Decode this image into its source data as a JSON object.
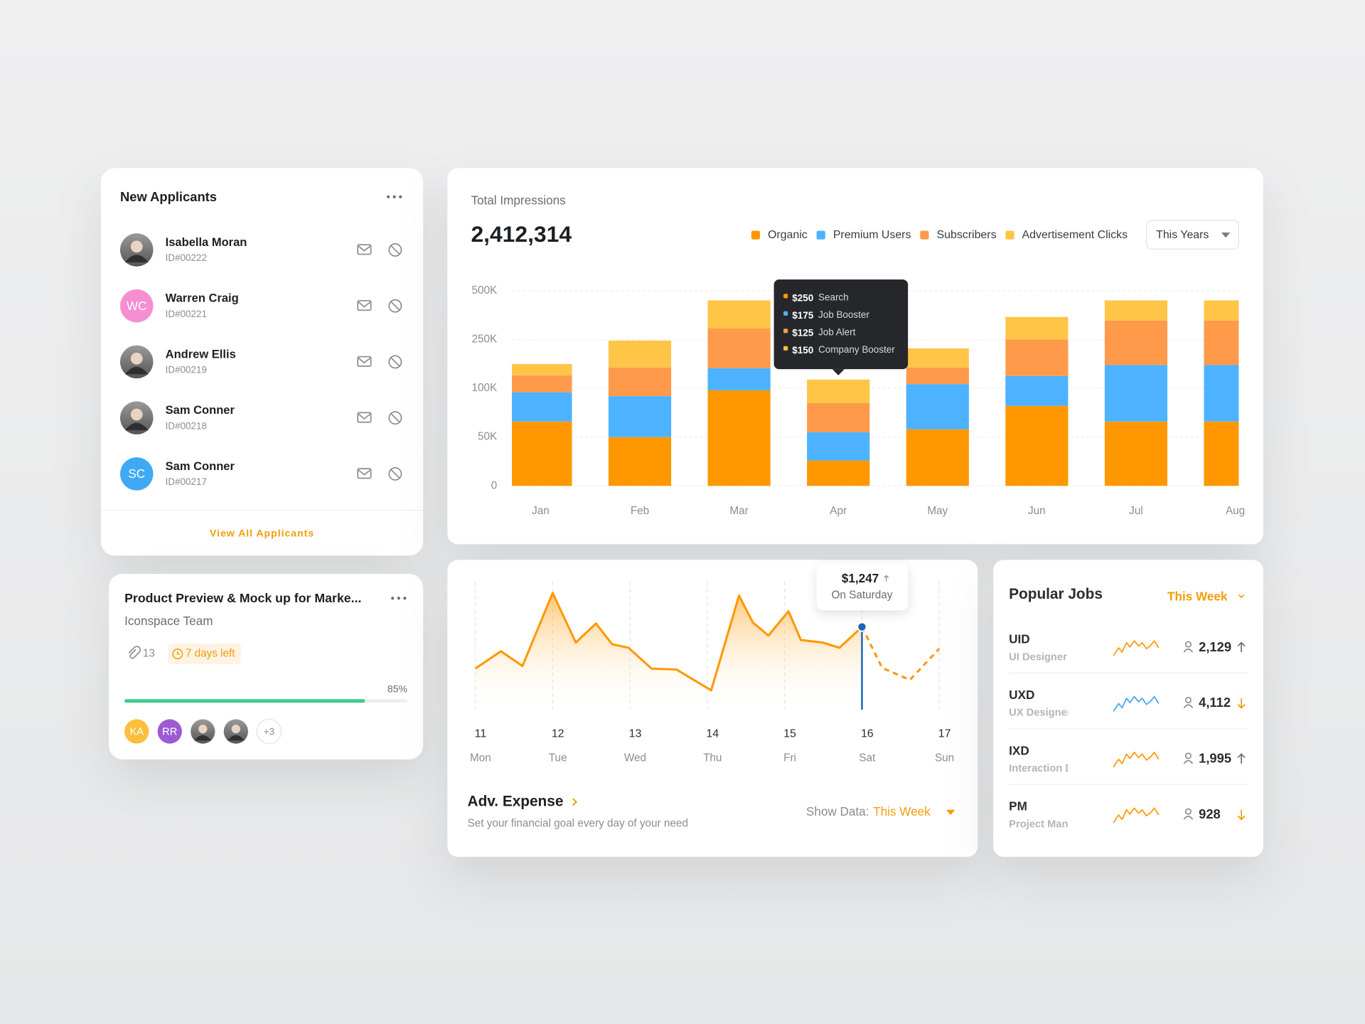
{
  "applicants": {
    "title": "New Applicants",
    "items": [
      {
        "name": "Isabella Moran",
        "id": "ID#00222"
      },
      {
        "name": "Warren Craig",
        "id": "ID#00221",
        "initials": "WC",
        "color": "#f58fd2"
      },
      {
        "name": "Andrew Ellis",
        "id": "ID#00219"
      },
      {
        "name": "Sam Conner",
        "id": "ID#00218"
      },
      {
        "name": "Sam Conner",
        "id": "ID#00217",
        "initials": "SC",
        "color": "#3fa9f5"
      }
    ],
    "link": "View All Applicants"
  },
  "project": {
    "title": "Product Preview & Mock up for Marke...",
    "team": "Iconspace Team",
    "attachments": 13,
    "deadline": "7 days left",
    "progress": {
      "value": 85,
      "label": "85%"
    },
    "members": [
      {
        "initials": "KA",
        "color": "#fbbf3c"
      },
      {
        "initials": "RR",
        "color": "#9b5bd4"
      }
    ],
    "more": "+3"
  },
  "chart_data": [
    {
      "type": "bar",
      "stacked": true,
      "title": "Total Impressions",
      "total": "2,412,314",
      "period": "This Years",
      "categories": [
        "Jan",
        "Feb",
        "Mar",
        "Apr",
        "May",
        "Jun",
        "Jul",
        "Aug"
      ],
      "series": [
        {
          "name": "Organic",
          "color": "#ff9800",
          "values": [
            66000,
            50000,
            98000,
            26000,
            58000,
            82000,
            66000,
            66000
          ]
        },
        {
          "name": "Premium Users",
          "color": "#4db2ff",
          "values": [
            30000,
            42000,
            64000,
            29000,
            55000,
            56000,
            106000,
            106000
          ]
        },
        {
          "name": "Subscribers",
          "color": "#ff9a4a",
          "values": [
            44000,
            72000,
            146000,
            30000,
            51000,
            112000,
            176000,
            176000
          ]
        },
        {
          "name": "Advertisement Clicks",
          "color": "#ffc547",
          "values": [
            35000,
            83000,
            143000,
            42000,
            59000,
            116000,
            103000,
            103000
          ]
        }
      ],
      "ylim": [
        0,
        500000
      ],
      "yticks": [
        0,
        {
          "value": 50000,
          "label": "50K"
        },
        {
          "value": 100000,
          "label": "100K"
        },
        {
          "value": 250000,
          "label": "250K"
        },
        {
          "value": 500000,
          "label": "500K"
        }
      ],
      "grid": true,
      "tooltip": {
        "category": "Apr",
        "items": [
          {
            "amount": "$250",
            "label": "Search",
            "color": "#ff9800"
          },
          {
            "amount": "$175",
            "label": "Job Booster",
            "color": "#4db2ff"
          },
          {
            "amount": "$125",
            "label": "Job Alert",
            "color": "#ff9a4a"
          },
          {
            "amount": "$150",
            "label": "Company Booster",
            "color": "#ffc547"
          }
        ]
      }
    },
    {
      "type": "line",
      "title": "Adv. Expense",
      "subtitle": "Set your financial goal every day of your need",
      "filter_label": "Show Data:",
      "filter": "This Week",
      "x": [
        11,
        11.33,
        11.61,
        12,
        12.3,
        12.56,
        12.77,
        12.98,
        13.28,
        13.6,
        14.05,
        14.41,
        14.59,
        14.79,
        15.05,
        15.21,
        15.49,
        15.71,
        16,
        16.26,
        16.62,
        17
      ],
      "xlim": [
        11,
        17
      ],
      "xticks": [
        11,
        12,
        13,
        14,
        15,
        16,
        17
      ],
      "xtick_labels": [
        "Mon",
        "Tue",
        "Wed",
        "Thu",
        "Fri",
        "Sat",
        "Sun"
      ],
      "grid": true,
      "series": [
        {
          "color": "#ff9800",
          "values": [
            618,
            880,
            658,
            1758,
            1011,
            1299,
            985,
            933,
            618,
            605,
            291,
            1719,
            1313,
            1116,
            1483,
            1050,
            1011,
            933,
            1247,
            null,
            null,
            null
          ]
        },
        {
          "color": "#ff9800",
          "dashed": true,
          "values": [
            null,
            null,
            null,
            null,
            null,
            null,
            null,
            null,
            null,
            null,
            null,
            null,
            null,
            null,
            null,
            null,
            null,
            null,
            1247,
            631,
            448,
            920
          ]
        }
      ],
      "highlight": {
        "x": 16,
        "value": 1247,
        "value_label": "$1,247",
        "label": "On Saturday",
        "color": "#1565c0"
      }
    }
  ],
  "jobs": {
    "title": "Popular Jobs",
    "period": "This Week",
    "items": [
      {
        "code": "UID",
        "role": "UI Designer",
        "count": "2,129",
        "trend": "up",
        "color": "#ff9800"
      },
      {
        "code": "UXD",
        "role": "UX Designer",
        "count": "4,112",
        "trend": "down",
        "color": "#42a5f5"
      },
      {
        "code": "IXD",
        "role": "Interaction Designer",
        "count": "1,995",
        "trend": "up",
        "color": "#ff9800"
      },
      {
        "code": "PM",
        "role": "Project Manager",
        "count": "928",
        "trend": "down",
        "color": "#ff9800"
      }
    ]
  }
}
